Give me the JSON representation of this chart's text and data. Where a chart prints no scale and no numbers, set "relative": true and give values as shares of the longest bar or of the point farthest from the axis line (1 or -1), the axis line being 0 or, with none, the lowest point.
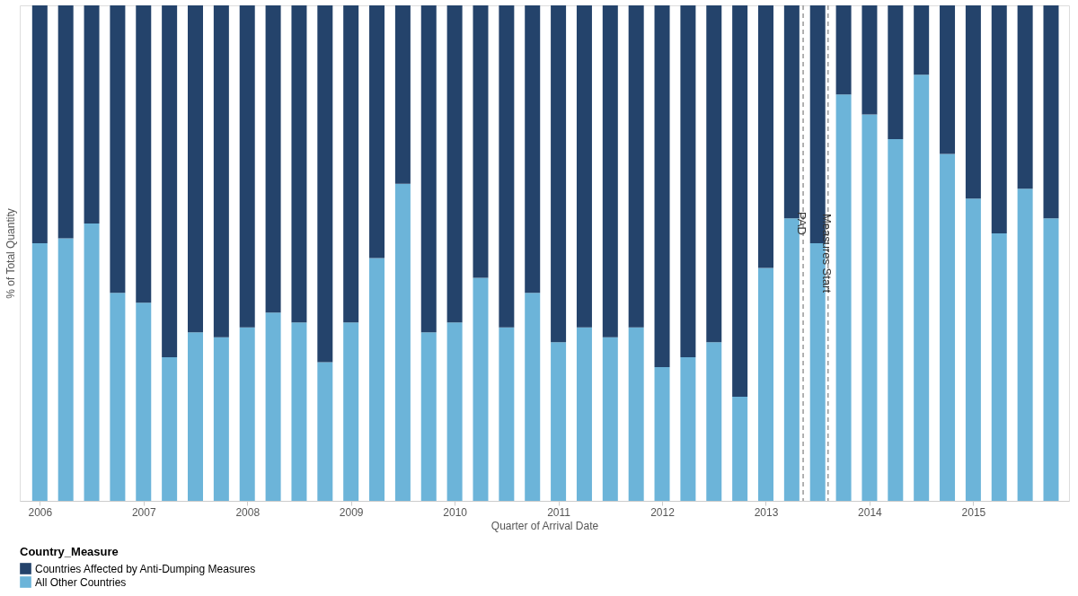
{
  "chart_data": {
    "type": "bar",
    "stacked": true,
    "relative": true,
    "xlabel": "Quarter of Arrival Date",
    "ylabel": "% of Total Quantity",
    "legend_title": "Country_Measure",
    "legend": "bottom",
    "grid": false,
    "tick_labels": "x",
    "x": [
      2006,
      2006.25,
      2006.5,
      2006.75,
      2007,
      2007.25,
      2007.5,
      2007.75,
      2008,
      2008.25,
      2008.5,
      2008.75,
      2009,
      2009.25,
      2009.5,
      2009.75,
      2010,
      2010.25,
      2010.5,
      2010.75,
      2011,
      2011.25,
      2011.5,
      2011.75,
      2012,
      2012.25,
      2012.5,
      2012.75,
      2013,
      2013.25,
      2013.5,
      2013.75,
      2014,
      2014.25,
      2014.5,
      2014.75,
      2015,
      2015.25,
      2015.5,
      2015.75
    ],
    "xlim": [
      2005.85,
      2015.88
    ],
    "xticks": [
      2006,
      2007,
      2008,
      2009,
      2010,
      2011,
      2012,
      2013,
      2014,
      2015
    ],
    "series": [
      {
        "name": "All Other Countries",
        "color": "#6cb4d9",
        "values": [
          0.52,
          0.53,
          0.56,
          0.42,
          0.4,
          0.29,
          0.34,
          0.33,
          0.35,
          0.38,
          0.36,
          0.28,
          0.36,
          0.49,
          0.64,
          0.34,
          0.36,
          0.45,
          0.35,
          0.42,
          0.32,
          0.35,
          0.33,
          0.35,
          0.27,
          0.29,
          0.32,
          0.21,
          0.47,
          0.57,
          0.52,
          0.82,
          0.78,
          0.73,
          0.86,
          0.7,
          0.61,
          0.54,
          0.63,
          0.57
        ]
      },
      {
        "name": "Countries Affected by Anti-Dumping Measures",
        "color": "#24436b",
        "values": [
          0.48,
          0.47,
          0.44,
          0.58,
          0.6,
          0.71,
          0.66,
          0.67,
          0.65,
          0.62,
          0.64,
          0.72,
          0.64,
          0.51,
          0.36,
          0.66,
          0.64,
          0.55,
          0.65,
          0.58,
          0.68,
          0.65,
          0.67,
          0.65,
          0.73,
          0.71,
          0.68,
          0.79,
          0.53,
          0.43,
          0.48,
          0.18,
          0.22,
          0.27,
          0.14,
          0.3,
          0.39,
          0.46,
          0.37,
          0.43
        ]
      }
    ],
    "ref_lines": [
      {
        "axis": "x",
        "value": 2013.36,
        "label": "PAD",
        "color": "#999999",
        "line_style": "dashed"
      },
      {
        "axis": "x",
        "value": 2013.6,
        "label": "Measures Start",
        "color": "#999999",
        "line_style": "dashed"
      }
    ]
  }
}
